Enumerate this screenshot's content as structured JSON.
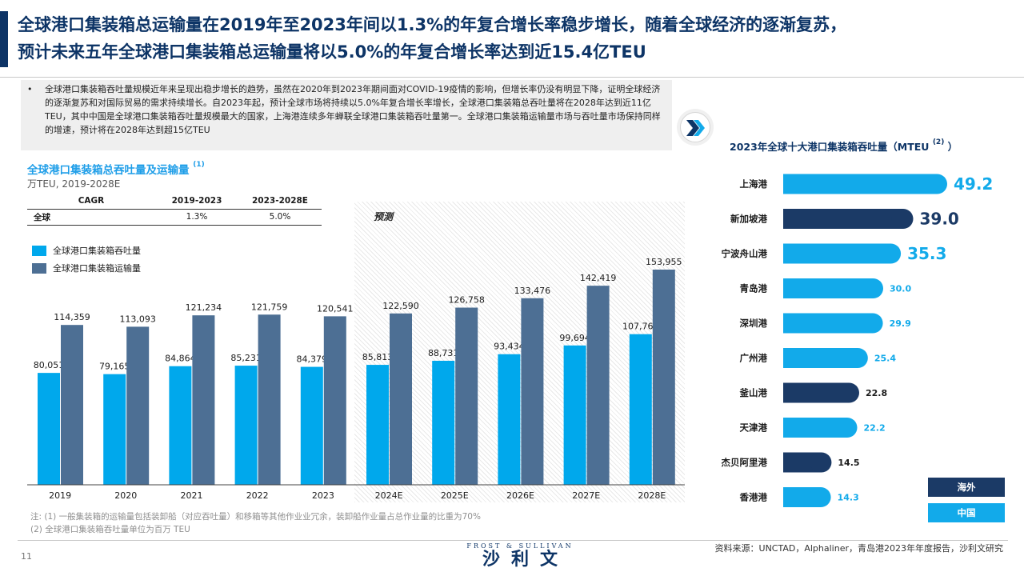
{
  "header": {
    "title_line1": "全球港口集装箱总运输量在2019年至2023年间以1.3%的年复合增长率稳步增长，随着全球经济的逐渐复苏，",
    "title_line2": "预计未来五年全球港口集装箱总运输量将以5.0%的年复合增长率达到近15.4亿TEU"
  },
  "summary": {
    "bullet": "•",
    "text": "全球港口集装箱吞吐量规模近年来呈现出稳步增长的趋势，虽然在2020年到2023年期间面对COVID-19疫情的影响，但增长率仍没有明显下降，证明全球经济的逐渐复苏和对国际贸易的需求持续增长。自2023年起，预计全球市场将持续以5.0%年复合增长率增长，全球港口集装箱总吞吐量将在2028年达到近11亿TEU，其中中国是全球港口集装箱吞吐量规模最大的国家，上海港连续多年蝉联全球港口集装箱吞吐量第一。全球港口集装箱运输量市场与吞吐量市场保持同样的增速，预计将在2028年达到超15亿TEU"
  },
  "left_chart": {
    "title": "全球港口集装箱总吞吐量及运输量",
    "title_note": "(1)",
    "subtitle": "万TEU, 2019-2028E",
    "forecast_label": "预测",
    "cagr_table": {
      "headers": [
        "CAGR",
        "2019-2023",
        "2023-2028E"
      ],
      "rows": [
        [
          "全球",
          "1.3%",
          "5.0%"
        ]
      ]
    },
    "legend": [
      {
        "name": "全球港口集装箱吞吐量",
        "color": "#00a8ec"
      },
      {
        "name": "全球港口集装箱运输量",
        "color": "#4d6f94"
      }
    ]
  },
  "right_chart": {
    "title": "2023年全球十大港口集装箱吞吐量（MTEU",
    "title_note": "(2)",
    "title_end": "）",
    "legend": [
      {
        "name": "海外",
        "color": "#1b3a66"
      },
      {
        "name": "中国",
        "color": "#12aaea"
      }
    ]
  },
  "notes": {
    "line1": "注: (1) 一般集装箱的运输量包括装卸船（对应吞吐量）和移箱等其他作业业冗余，装卸船作业量占总作业量的比重为70%",
    "line2": "(2) 全球港口集装箱吞吐量单位为百万 TEU"
  },
  "footer": {
    "page_number": "11",
    "brand_en": "FROST & SULLIVAN",
    "brand_cn": "沙利文",
    "source": "资料来源：UNCTAD，Alphaliner，青岛港2023年年度报告，沙利文研究"
  },
  "chart_data": [
    {
      "type": "bar",
      "title": "全球港口集装箱总吞吐量及运输量",
      "ylabel": "万TEU",
      "categories": [
        "2019",
        "2020",
        "2021",
        "2022",
        "2023",
        "2024E",
        "2025E",
        "2026E",
        "2027E",
        "2028E"
      ],
      "series": [
        {
          "name": "全球港口集装箱吞吐量",
          "color": "#00a8ec",
          "values": [
            80051,
            79165,
            84864,
            85231,
            84379,
            85813,
            88731,
            93434,
            99694,
            107769
          ],
          "labels": [
            "80,051",
            "79,165",
            "84,864",
            "85,231",
            "84,379",
            "85,813",
            "88,731",
            "93,434",
            "99,694",
            "107,769"
          ]
        },
        {
          "name": "全球港口集装箱运输量",
          "color": "#4d6f94",
          "values": [
            114359,
            113093,
            121234,
            121759,
            120541,
            122590,
            126758,
            133476,
            142419,
            153955
          ],
          "labels": [
            "114,359",
            "113,093",
            "121,234",
            "121,759",
            "120,541",
            "122,590",
            "126,758",
            "133,476",
            "142,419",
            "153,955"
          ]
        }
      ],
      "ylim": [
        0,
        153955
      ],
      "grid": false
    },
    {
      "type": "bar",
      "orientation": "horizontal",
      "title": "2023年全球十大港口集装箱吞吐量（MTEU）",
      "categories": [
        "上海港",
        "新加坡港",
        "宁波舟山港",
        "青岛港",
        "深圳港",
        "广州港",
        "釜山港",
        "天津港",
        "杰贝阿里港",
        "香港港"
      ],
      "values": [
        49.2,
        39.0,
        35.3,
        30.0,
        29.9,
        25.4,
        22.8,
        22.2,
        14.5,
        14.3
      ],
      "labels": [
        "49.2",
        "39.0",
        "35.3",
        "30.0",
        "29.9",
        "25.4",
        "22.8",
        "22.2",
        "14.5",
        "14.3"
      ],
      "groups": [
        "中国",
        "海外",
        "中国",
        "中国",
        "中国",
        "中国",
        "海外",
        "中国",
        "海外",
        "中国"
      ],
      "colors": {
        "中国": "#12aaea",
        "海外": "#1b3a66"
      },
      "xlim": [
        0,
        49.2
      ]
    }
  ]
}
